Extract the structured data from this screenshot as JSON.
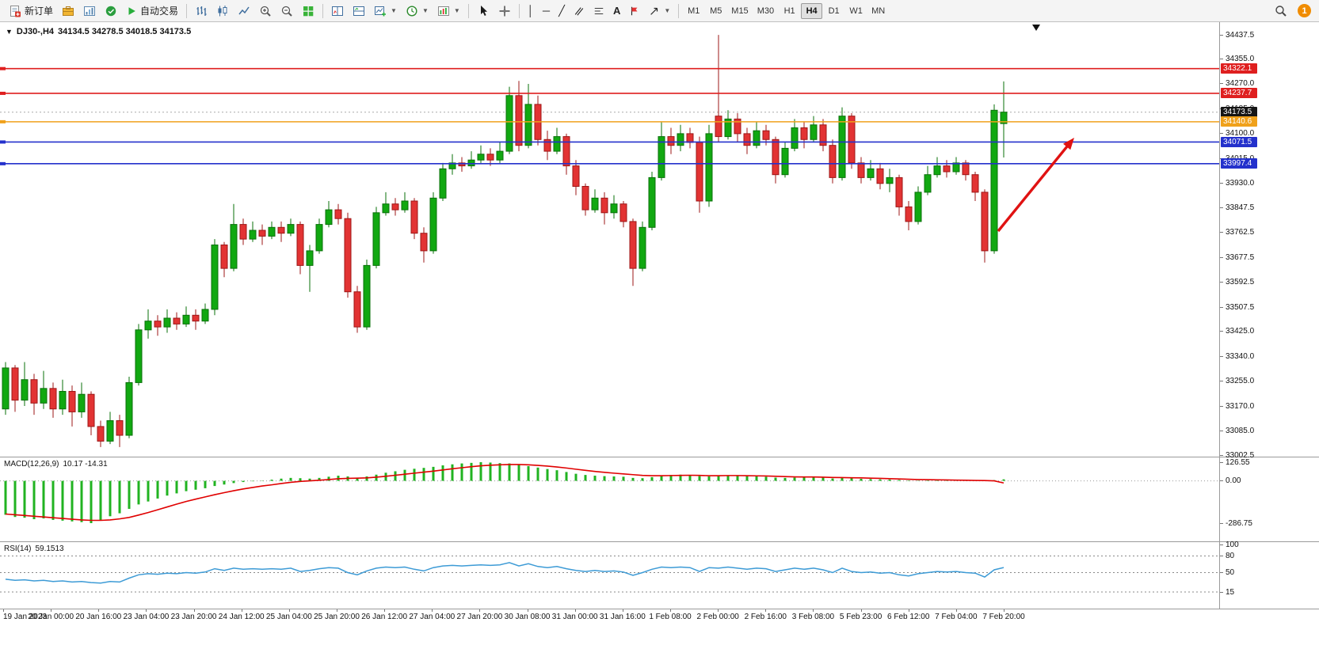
{
  "toolbar": {
    "new_order_label": "新订单",
    "auto_trading_label": "自动交易",
    "timeframes": [
      "M1",
      "M5",
      "M15",
      "M30",
      "H1",
      "H4",
      "D1",
      "W1",
      "MN"
    ],
    "active_timeframe": "H4",
    "notification_badge": "1"
  },
  "chart": {
    "symbol_title": "DJ30-,H4",
    "ohlc_text": "34134.5 34278.5 34018.5 34173.5"
  },
  "macd_panel": {
    "name": "MACD(12,26,9)",
    "values": "10.17 -14.31"
  },
  "rsi_panel": {
    "name": "RSI(14)",
    "value": "59.1513"
  },
  "chart_data": [
    {
      "type": "candlestick",
      "name": "DJ30- H4 price",
      "up_color": "#11a811",
      "up_border": "#0a700a",
      "down_color": "#e23333",
      "down_border": "#9d1717",
      "y_max": 34437.5,
      "y_min": 33002.5,
      "y_ticks": [
        "34437.5",
        "34355.0",
        "34270.0",
        "34185.0",
        "34100.0",
        "34015.0",
        "33930.0",
        "33847.5",
        "33762.5",
        "33677.5",
        "33592.5",
        "33507.5",
        "33425.0",
        "33340.0",
        "33255.0",
        "33170.0",
        "33085.0",
        "33002.5"
      ],
      "x_labels": [
        "19 Jan 2023",
        "20 Jan 00:00",
        "20 Jan 16:00",
        "23 Jan 04:00",
        "23 Jan 20:00",
        "24 Jan 12:00",
        "25 Jan 04:00",
        "25 Jan 20:00",
        "26 Jan 12:00",
        "27 Jan 04:00",
        "27 Jan 20:00",
        "30 Jan 08:00",
        "31 Jan 00:00",
        "31 Jan 16:00",
        "1 Feb 08:00",
        "2 Feb 00:00",
        "2 Feb 16:00",
        "3 Feb 08:00",
        "5 Feb 23:00",
        "6 Feb 12:00",
        "7 Feb 04:00",
        "7 Feb 20:00"
      ],
      "horizontal_lines": [
        {
          "price": 34322.1,
          "color": "#df1f1f",
          "style": "solid",
          "label": "34322.1",
          "tag_bg": "#df1f1f"
        },
        {
          "price": 34237.7,
          "color": "#df1f1f",
          "style": "solid",
          "label": "34237.7",
          "tag_bg": "#df1f1f"
        },
        {
          "price": 34173.5,
          "color": "#a8a8a8",
          "style": "dotted",
          "label": "34173.5",
          "tag_bg": "#151515"
        },
        {
          "price": 34140.6,
          "color": "#f0a11b",
          "style": "solid",
          "label": "34140.6",
          "tag_bg": "#f0a11b"
        },
        {
          "price": 34071.5,
          "color": "#2431cc",
          "style": "solid",
          "label": "34071.5",
          "tag_bg": "#2431cc"
        },
        {
          "price": 33997.4,
          "color": "#2431cc",
          "style": "solid",
          "label": "33997.4",
          "tag_bg": "#2431cc"
        }
      ],
      "shift_marker_x": 1308,
      "arrow": {
        "from": [
          1260,
          264
        ],
        "to": [
          1356,
          146
        ],
        "color": "#e01212"
      },
      "ohlc": [
        [
          33160,
          33320,
          33140,
          33300
        ],
        [
          33300,
          33310,
          33150,
          33190
        ],
        [
          33190,
          33320,
          33170,
          33260
        ],
        [
          33260,
          33280,
          33140,
          33180
        ],
        [
          33180,
          33290,
          33160,
          33230
        ],
        [
          33230,
          33250,
          33130,
          33160
        ],
        [
          33160,
          33260,
          33140,
          33220
        ],
        [
          33220,
          33240,
          33100,
          33150
        ],
        [
          33150,
          33250,
          33130,
          33210
        ],
        [
          33210,
          33220,
          33070,
          33100
        ],
        [
          33100,
          33120,
          33030,
          33050
        ],
        [
          33050,
          33150,
          33040,
          33120
        ],
        [
          33120,
          33140,
          33030,
          33070
        ],
        [
          33070,
          33270,
          33060,
          33250
        ],
        [
          33250,
          33450,
          33240,
          33430
        ],
        [
          33430,
          33500,
          33400,
          33460
        ],
        [
          33460,
          33480,
          33410,
          33440
        ],
        [
          33440,
          33500,
          33420,
          33470
        ],
        [
          33470,
          33490,
          33430,
          33450
        ],
        [
          33450,
          33510,
          33440,
          33480
        ],
        [
          33480,
          33500,
          33430,
          33460
        ],
        [
          33460,
          33520,
          33450,
          33500
        ],
        [
          33500,
          33740,
          33480,
          33720
        ],
        [
          33720,
          33730,
          33610,
          33640
        ],
        [
          33640,
          33860,
          33630,
          33790
        ],
        [
          33790,
          33810,
          33720,
          33740
        ],
        [
          33740,
          33800,
          33730,
          33770
        ],
        [
          33770,
          33790,
          33720,
          33750
        ],
        [
          33750,
          33800,
          33740,
          33780
        ],
        [
          33780,
          33800,
          33730,
          33760
        ],
        [
          33760,
          33810,
          33750,
          33790
        ],
        [
          33790,
          33800,
          33620,
          33650
        ],
        [
          33650,
          33720,
          33560,
          33700
        ],
        [
          33700,
          33810,
          33690,
          33790
        ],
        [
          33790,
          33870,
          33780,
          33840
        ],
        [
          33840,
          33860,
          33790,
          33810
        ],
        [
          33810,
          33830,
          33540,
          33560
        ],
        [
          33560,
          33580,
          33420,
          33440
        ],
        [
          33440,
          33670,
          33430,
          33650
        ],
        [
          33650,
          33850,
          33640,
          33830
        ],
        [
          33830,
          33900,
          33820,
          33860
        ],
        [
          33860,
          33880,
          33820,
          33840
        ],
        [
          33840,
          33900,
          33830,
          33870
        ],
        [
          33870,
          33880,
          33740,
          33760
        ],
        [
          33760,
          33780,
          33660,
          33700
        ],
        [
          33700,
          33900,
          33690,
          33880
        ],
        [
          33880,
          34000,
          33870,
          33980
        ],
        [
          33980,
          34030,
          33960,
          34000
        ],
        [
          34000,
          34020,
          33970,
          33990
        ],
        [
          33990,
          34040,
          33980,
          34010
        ],
        [
          34010,
          34060,
          34000,
          34030
        ],
        [
          34030,
          34050,
          33990,
          34010
        ],
        [
          34010,
          34070,
          34000,
          34040
        ],
        [
          34040,
          34260,
          34030,
          34230
        ],
        [
          34230,
          34280,
          34040,
          34060
        ],
        [
          34060,
          34270,
          34050,
          34200
        ],
        [
          34200,
          34230,
          34060,
          34080
        ],
        [
          34080,
          34110,
          34010,
          34040
        ],
        [
          34040,
          34120,
          34030,
          34090
        ],
        [
          34090,
          34100,
          33960,
          33990
        ],
        [
          33990,
          34010,
          33890,
          33920
        ],
        [
          33920,
          33930,
          33820,
          33840
        ],
        [
          33840,
          33910,
          33830,
          33880
        ],
        [
          33880,
          33900,
          33790,
          33830
        ],
        [
          33830,
          33890,
          33810,
          33860
        ],
        [
          33860,
          33870,
          33780,
          33800
        ],
        [
          33800,
          33810,
          33580,
          33640
        ],
        [
          33640,
          33800,
          33630,
          33780
        ],
        [
          33780,
          33970,
          33770,
          33950
        ],
        [
          33950,
          34140,
          33940,
          34090
        ],
        [
          34090,
          34120,
          34030,
          34060
        ],
        [
          34060,
          34130,
          34040,
          34100
        ],
        [
          34100,
          34120,
          34050,
          34070
        ],
        [
          34070,
          34090,
          33830,
          33870
        ],
        [
          33870,
          34130,
          33850,
          34100
        ],
        [
          34160,
          34437,
          34070,
          34090
        ],
        [
          34090,
          34180,
          34080,
          34150
        ],
        [
          34150,
          34170,
          34070,
          34100
        ],
        [
          34100,
          34120,
          34030,
          34060
        ],
        [
          34060,
          34140,
          34050,
          34110
        ],
        [
          34110,
          34130,
          34060,
          34080
        ],
        [
          34080,
          34090,
          33930,
          33960
        ],
        [
          33960,
          34070,
          33950,
          34050
        ],
        [
          34050,
          34150,
          34040,
          34120
        ],
        [
          34120,
          34140,
          34050,
          34080
        ],
        [
          34080,
          34160,
          34070,
          34130
        ],
        [
          34130,
          34150,
          34040,
          34060
        ],
        [
          34060,
          34080,
          33930,
          33950
        ],
        [
          33950,
          34190,
          33940,
          34160
        ],
        [
          34160,
          34170,
          33980,
          34000
        ],
        [
          34000,
          34020,
          33930,
          33950
        ],
        [
          33950,
          34010,
          33940,
          33980
        ],
        [
          33980,
          34000,
          33910,
          33930
        ],
        [
          33930,
          33980,
          33900,
          33950
        ],
        [
          33950,
          33960,
          33820,
          33850
        ],
        [
          33850,
          33870,
          33770,
          33800
        ],
        [
          33800,
          33920,
          33790,
          33900
        ],
        [
          33900,
          33990,
          33890,
          33960
        ],
        [
          33960,
          34020,
          33950,
          33990
        ],
        [
          33990,
          34010,
          33950,
          33970
        ],
        [
          33970,
          34020,
          33960,
          34000
        ],
        [
          34000,
          34010,
          33940,
          33960
        ],
        [
          33960,
          33970,
          33870,
          33900
        ],
        [
          33900,
          33910,
          33660,
          33700
        ],
        [
          33700,
          34200,
          33690,
          34180
        ],
        [
          34134.5,
          34278.5,
          34018.5,
          34173.5
        ]
      ]
    },
    {
      "type": "bar",
      "name": "MACD(12,26,9) histogram",
      "color": "#21b321",
      "y_max": 126.55,
      "y_min": -286.75,
      "y_ticks": [
        "126.55",
        "0.00",
        "-286.75"
      ],
      "values": [
        -230,
        -245,
        -250,
        -260,
        -255,
        -265,
        -270,
        -275,
        -280,
        -286.75,
        -270,
        -240,
        -220,
        -190,
        -160,
        -140,
        -120,
        -100,
        -85,
        -70,
        -60,
        -50,
        -35,
        -25,
        -15,
        -8,
        -3,
        2,
        8,
        15,
        20,
        18,
        15,
        20,
        28,
        35,
        30,
        22,
        30,
        42,
        55,
        65,
        75,
        82,
        88,
        95,
        105,
        112,
        118,
        122,
        126.55,
        124,
        120,
        118,
        110,
        100,
        90,
        80,
        72,
        60,
        48,
        40,
        35,
        32,
        30,
        28,
        20,
        18,
        25,
        35,
        40,
        42,
        40,
        32,
        30,
        35,
        38,
        36,
        32,
        30,
        28,
        22,
        20,
        22,
        24,
        25,
        22,
        16,
        20,
        18,
        14,
        12,
        10,
        9,
        6,
        3,
        2,
        3,
        4,
        4,
        3,
        2,
        1,
        -2,
        5,
        10.17
      ]
    },
    {
      "type": "line",
      "name": "MACD signal",
      "color": "#e00000",
      "values": [
        -225,
        -230,
        -235,
        -240,
        -245,
        -250,
        -255,
        -260,
        -265,
        -268,
        -268,
        -265,
        -258,
        -248,
        -232,
        -215,
        -196,
        -177,
        -158,
        -140,
        -124,
        -109,
        -94,
        -80,
        -67,
        -55,
        -45,
        -35,
        -27,
        -18,
        -10,
        -4,
        0,
        4,
        9,
        14,
        17,
        18,
        20,
        25,
        31,
        38,
        45,
        52,
        59,
        66,
        74,
        82,
        89,
        96,
        102,
        106,
        109,
        111,
        111,
        109,
        105,
        100,
        94,
        87,
        79,
        71,
        64,
        58,
        52,
        47,
        42,
        37,
        35,
        35,
        36,
        37,
        38,
        37,
        35,
        35,
        36,
        36,
        35,
        34,
        33,
        31,
        29,
        27,
        26,
        26,
        25,
        23,
        22,
        21,
        20,
        18,
        17,
        15,
        13,
        11,
        9,
        8,
        7,
        6,
        5,
        4,
        3,
        2,
        0,
        -14.31
      ]
    },
    {
      "type": "line",
      "name": "RSI(14)",
      "color": "#3d9bd6",
      "levels": [
        80,
        50,
        15
      ],
      "y_ticks": [
        "100",
        "80",
        "50",
        "15"
      ],
      "y_max": 100,
      "y_min": 0,
      "values": [
        38,
        36,
        37,
        35,
        36,
        34,
        35,
        33,
        34,
        32,
        31,
        34,
        33,
        40,
        46,
        48,
        47,
        49,
        48,
        50,
        49,
        51,
        57,
        54,
        58,
        56,
        57,
        56,
        57,
        56,
        58,
        52,
        54,
        57,
        59,
        58,
        50,
        46,
        53,
        58,
        60,
        59,
        60,
        56,
        53,
        59,
        62,
        63,
        62,
        63,
        64,
        63,
        64,
        68,
        62,
        66,
        61,
        59,
        61,
        57,
        54,
        52,
        54,
        52,
        53,
        51,
        45,
        50,
        56,
        60,
        59,
        60,
        59,
        52,
        59,
        58,
        60,
        58,
        56,
        58,
        57,
        52,
        55,
        58,
        56,
        58,
        55,
        50,
        58,
        52,
        50,
        51,
        49,
        50,
        46,
        44,
        48,
        50,
        52,
        51,
        52,
        50,
        49,
        42,
        55,
        59.15
      ]
    }
  ]
}
